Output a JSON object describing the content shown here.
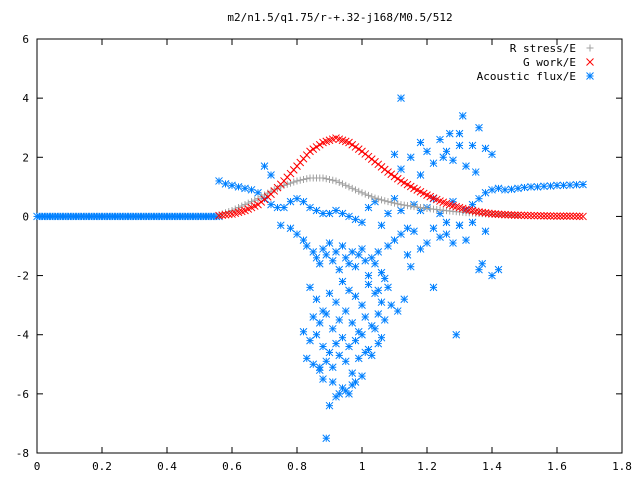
{
  "chart_data": {
    "type": "scatter",
    "title": "m2/n1.5/q1.75/r-+.32-j168/M0.5/512",
    "xlim": [
      0,
      1.8
    ],
    "ylim": [
      -8,
      6
    ],
    "xticks": [
      0,
      0.2,
      0.4,
      0.6,
      0.8,
      1,
      1.2,
      1.4,
      1.6,
      1.8
    ],
    "xtick_labels": [
      "0",
      "0.2",
      "0.4",
      "0.6",
      "0.8",
      "1",
      "1.2",
      "1.4",
      "1.6",
      "1.8"
    ],
    "yticks": [
      -8,
      -6,
      -4,
      -2,
      0,
      2,
      4,
      6
    ],
    "ytick_labels": [
      "-8",
      "-6",
      "-4",
      "-2",
      "0",
      "2",
      "4",
      "6"
    ],
    "legend_position": "top-right",
    "series": [
      {
        "name": "R stress/E",
        "marker": "plus",
        "color": "#a0a0a0",
        "x": [
          0.56,
          0.6,
          0.64,
          0.68,
          0.72,
          0.76,
          0.8,
          0.84,
          0.88,
          0.92,
          0.96,
          1.0,
          1.04,
          1.08,
          1.12,
          1.16,
          1.2,
          1.24,
          1.28,
          1.32,
          1.36,
          1.4,
          1.44,
          1.48
        ],
        "y": [
          0.05,
          0.2,
          0.4,
          0.6,
          0.85,
          1.05,
          1.2,
          1.3,
          1.3,
          1.2,
          1.0,
          0.8,
          0.62,
          0.5,
          0.4,
          0.33,
          0.27,
          0.22,
          0.17,
          0.13,
          0.1,
          0.07,
          0.05,
          0.03
        ]
      },
      {
        "name": "G work/E",
        "marker": "cross",
        "color": "#ff0000",
        "x": [
          0.56,
          0.6,
          0.64,
          0.68,
          0.72,
          0.76,
          0.8,
          0.84,
          0.88,
          0.92,
          0.96,
          1.0,
          1.04,
          1.08,
          1.12,
          1.16,
          1.2,
          1.24,
          1.28,
          1.32,
          1.36,
          1.4,
          1.44,
          1.48,
          1.52,
          1.56,
          1.6,
          1.64,
          1.68
        ],
        "y": [
          0.03,
          0.08,
          0.2,
          0.4,
          0.75,
          1.2,
          1.7,
          2.2,
          2.5,
          2.65,
          2.5,
          2.2,
          1.85,
          1.5,
          1.2,
          0.95,
          0.72,
          0.52,
          0.36,
          0.24,
          0.15,
          0.09,
          0.06,
          0.04,
          0.03,
          0.02,
          0.01,
          0.01,
          0.0
        ]
      },
      {
        "name": "Acoustic flux/E",
        "marker": "star",
        "color": "#0080ff",
        "x": [
          0.56,
          0.58,
          0.6,
          0.62,
          0.64,
          0.66,
          0.68,
          0.7,
          0.72,
          0.74,
          0.76,
          0.78,
          0.8,
          0.82,
          0.84,
          0.86,
          0.88,
          0.9,
          0.92,
          0.94,
          0.96,
          0.98,
          1.0,
          1.02,
          1.04,
          1.06,
          1.08,
          1.1,
          1.12,
          1.14,
          1.16,
          1.18,
          1.2,
          1.22,
          1.24,
          1.26,
          1.28,
          1.3,
          1.32,
          1.34,
          1.36,
          1.38,
          1.4,
          1.42,
          1.44,
          1.46,
          1.48,
          1.5,
          1.52,
          1.54,
          1.56,
          1.58,
          1.6,
          1.62,
          1.64,
          1.66,
          1.68,
          0.7,
          0.72,
          0.75,
          0.78,
          0.8,
          0.82,
          0.83,
          0.85,
          0.86,
          0.87,
          0.88,
          0.89,
          0.9,
          0.91,
          0.92,
          0.93,
          0.94,
          0.95,
          0.96,
          0.97,
          0.98,
          0.99,
          1.0,
          1.01,
          1.02,
          1.03,
          1.04,
          1.05,
          1.06,
          1.07,
          1.08,
          1.1,
          1.12,
          1.14,
          1.16,
          1.18,
          1.2,
          1.22,
          1.24,
          1.26,
          1.28,
          1.3,
          1.32,
          1.34,
          1.36,
          1.38,
          1.4,
          0.84,
          0.86,
          0.88,
          0.9,
          0.92,
          0.94,
          0.96,
          0.98,
          1.0,
          1.02,
          1.04,
          1.06,
          1.08,
          0.85,
          0.87,
          0.89,
          0.91,
          0.93,
          0.95,
          0.97,
          0.99,
          1.01,
          1.03,
          1.05,
          1.07,
          1.09,
          1.11,
          1.13,
          0.82,
          0.84,
          0.86,
          0.88,
          0.9,
          0.92,
          0.94,
          0.96,
          0.98,
          1.0,
          1.02,
          1.04,
          1.06,
          0.83,
          0.85,
          0.87,
          0.89,
          0.91,
          0.93,
          0.95,
          0.97,
          0.99,
          1.01,
          1.03,
          1.05,
          0.88,
          0.9,
          0.92,
          0.94,
          0.96,
          0.98,
          1.0,
          0.87,
          0.89,
          0.91,
          0.93,
          0.95,
          0.97,
          1.12,
          1.15,
          1.18,
          1.2,
          1.22,
          1.25,
          1.28,
          1.3,
          1.32,
          1.35,
          1.38,
          1.4,
          1.27,
          1.31,
          1.36,
          1.12,
          1.24,
          1.3,
          1.1,
          1.18,
          1.26,
          1.34,
          1.42,
          1.05,
          1.15,
          1.22,
          1.29,
          1.37
        ],
        "y": [
          1.2,
          1.1,
          1.05,
          1.0,
          0.95,
          0.9,
          0.8,
          0.6,
          0.4,
          0.3,
          0.3,
          0.5,
          0.6,
          0.5,
          0.3,
          0.2,
          0.1,
          0.1,
          0.2,
          0.1,
          0.0,
          -0.1,
          -0.2,
          0.3,
          0.5,
          -0.3,
          0.1,
          0.6,
          0.2,
          -0.4,
          0.4,
          0.2,
          0.3,
          0.6,
          0.1,
          -0.2,
          0.5,
          -0.3,
          0.2,
          0.4,
          0.6,
          0.8,
          0.9,
          0.95,
          0.9,
          0.92,
          0.95,
          0.98,
          1.0,
          1.0,
          1.02,
          1.03,
          1.05,
          1.05,
          1.06,
          1.07,
          1.08,
          1.7,
          1.4,
          -0.3,
          -0.4,
          -0.6,
          -0.8,
          -1.0,
          -1.2,
          -1.4,
          -1.6,
          -1.1,
          -1.3,
          -0.9,
          -1.5,
          -1.2,
          -1.8,
          -1.0,
          -1.4,
          -1.6,
          -1.2,
          -1.7,
          -1.3,
          -1.1,
          -1.5,
          -2.0,
          -1.4,
          -1.6,
          -1.2,
          -1.9,
          -2.1,
          -1.0,
          -0.8,
          -0.6,
          -1.3,
          -0.5,
          -1.1,
          -0.9,
          -0.4,
          -0.7,
          -0.6,
          -0.9,
          -0.3,
          -0.8,
          -0.2,
          -1.8,
          -0.5,
          -2.0,
          -2.4,
          -2.8,
          -3.2,
          -2.6,
          -2.9,
          -2.2,
          -2.5,
          -2.7,
          -3.0,
          -2.3,
          -2.6,
          -2.9,
          -2.4,
          -3.4,
          -3.6,
          -3.3,
          -3.8,
          -3.5,
          -3.2,
          -3.6,
          -3.9,
          -3.4,
          -3.7,
          -3.3,
          -3.5,
          -3.0,
          -3.2,
          -2.8,
          -3.9,
          -4.2,
          -4.0,
          -4.4,
          -4.6,
          -4.3,
          -4.1,
          -4.4,
          -4.2,
          -4.0,
          -4.5,
          -3.8,
          -4.1,
          -4.8,
          -5.0,
          -5.2,
          -4.9,
          -5.1,
          -4.7,
          -4.9,
          -5.3,
          -4.8,
          -4.6,
          -4.7,
          -4.3,
          -5.5,
          -6.4,
          -6.1,
          -5.8,
          -6.0,
          -5.6,
          -5.4,
          -5.1,
          -7.5,
          -5.6,
          -6.0,
          -5.9,
          -5.7,
          1.6,
          2.0,
          1.4,
          2.2,
          1.8,
          2.0,
          1.9,
          2.4,
          1.7,
          1.5,
          2.3,
          2.1,
          2.8,
          3.4,
          3.0,
          4.0,
          2.6,
          2.8,
          2.1,
          2.5,
          2.2,
          2.4,
          -1.8,
          -2.5,
          -1.7,
          -2.4,
          -4.0,
          -1.6
        ]
      }
    ],
    "baseline_series_name": "Acoustic flux/E",
    "baseline_x_range": [
      0,
      0.56
    ],
    "baseline_y": 0
  }
}
